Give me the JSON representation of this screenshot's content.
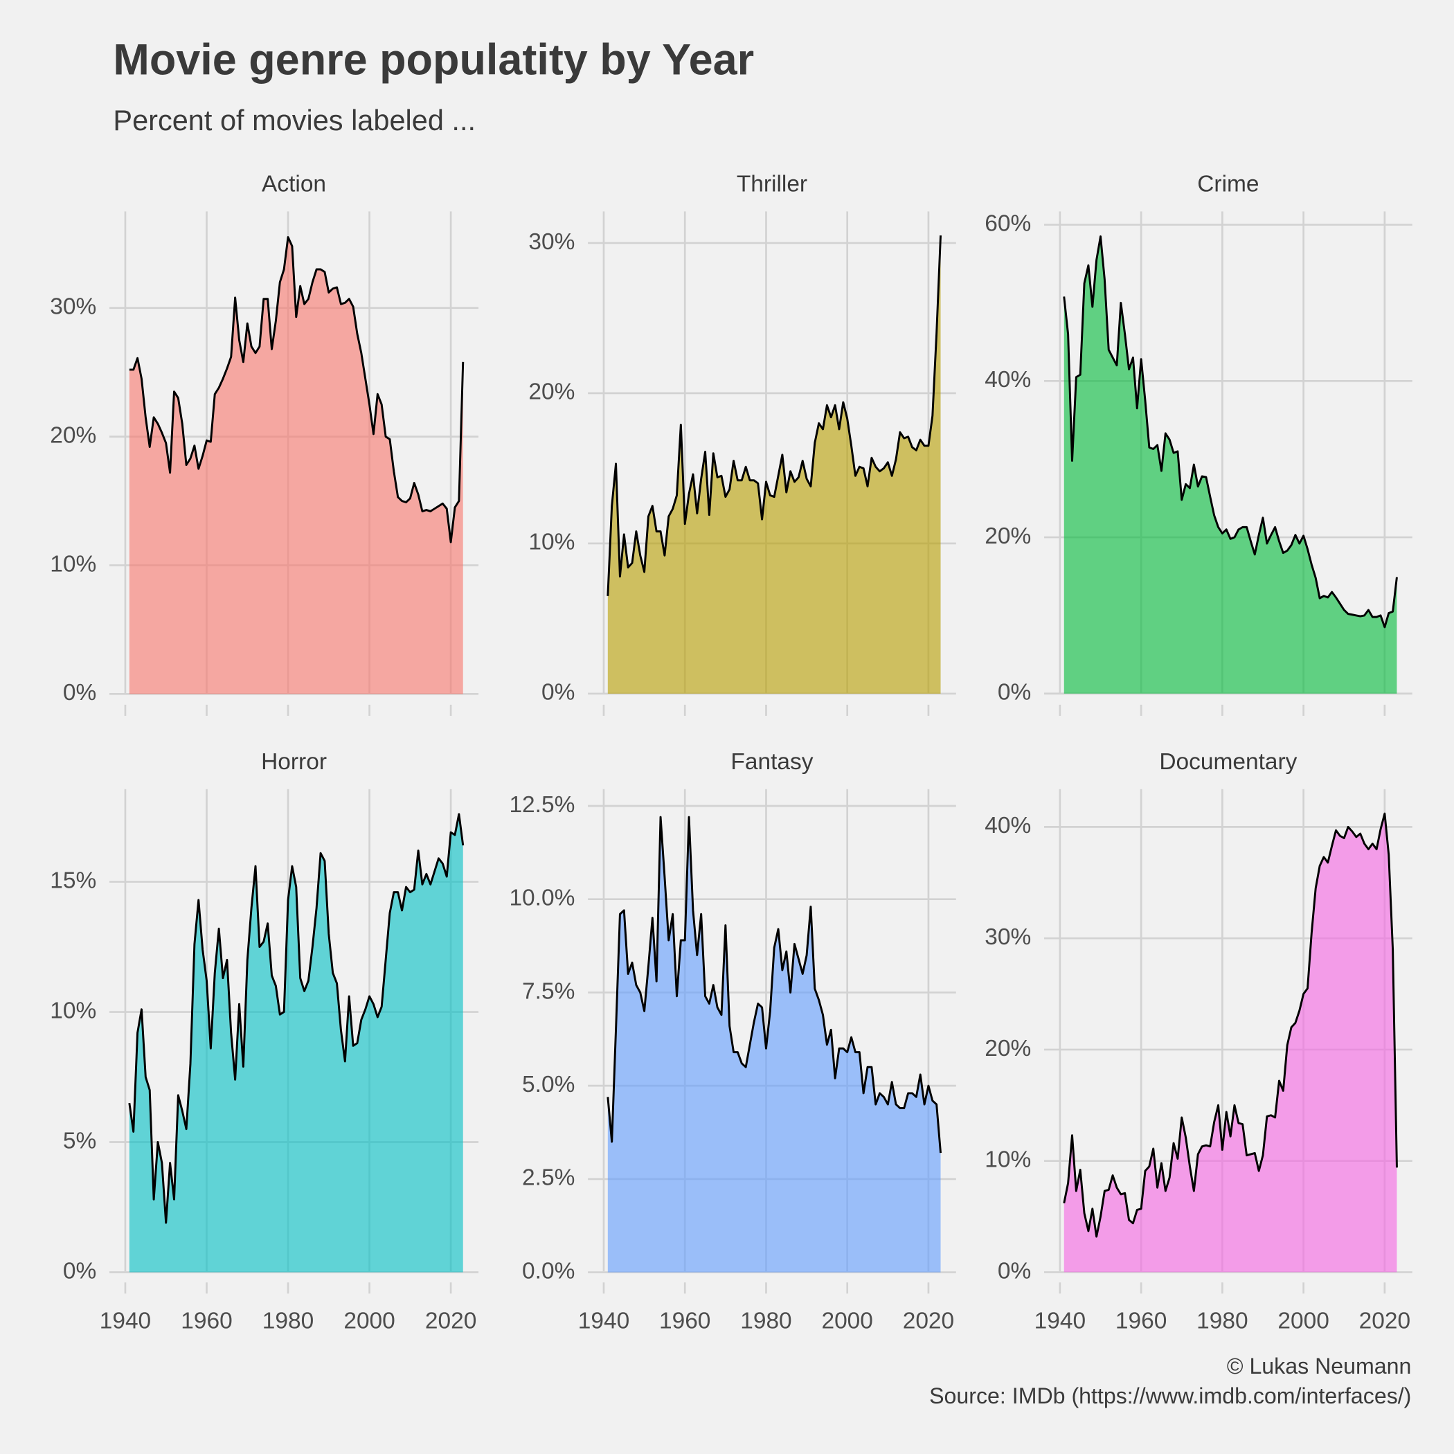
{
  "title": "Movie genre populatity by Year",
  "subtitle": "Percent of movies labeled ...",
  "caption": [
    "© Lukas Neumann",
    "Source: IMDb (https://www.imdb.com/interfaces/)"
  ],
  "chart_data": [
    {
      "type": "area",
      "title": "Action",
      "color": "#F8766D",
      "grid": true,
      "x": [
        1941,
        1942,
        1943,
        1944,
        1945,
        1946,
        1947,
        1948,
        1949,
        1950,
        1951,
        1952,
        1953,
        1954,
        1955,
        1956,
        1957,
        1958,
        1959,
        1960,
        1961,
        1962,
        1963,
        1964,
        1965,
        1966,
        1967,
        1968,
        1969,
        1970,
        1971,
        1972,
        1973,
        1974,
        1975,
        1976,
        1977,
        1978,
        1979,
        1980,
        1981,
        1982,
        1983,
        1984,
        1985,
        1986,
        1987,
        1988,
        1989,
        1990,
        1991,
        1992,
        1993,
        1994,
        1995,
        1996,
        1997,
        1998,
        1999,
        2000,
        2001,
        2002,
        2003,
        2004,
        2005,
        2006,
        2007,
        2008,
        2009,
        2010,
        2011,
        2012,
        2013,
        2014,
        2015,
        2016,
        2017,
        2018,
        2019,
        2020,
        2021,
        2022,
        2023
      ],
      "values": [
        25.2,
        25.2,
        26.1,
        24.5,
        21.5,
        19.2,
        21.5,
        21.0,
        20.3,
        19.5,
        17.2,
        23.5,
        23.0,
        21.0,
        17.8,
        18.3,
        19.3,
        17.5,
        18.5,
        19.7,
        19.6,
        23.3,
        23.8,
        24.5,
        25.3,
        26.2,
        30.8,
        27.5,
        25.8,
        28.8,
        27.0,
        26.5,
        27.0,
        30.7,
        30.7,
        26.8,
        29.0,
        32.0,
        33.0,
        35.5,
        34.8,
        29.3,
        31.7,
        30.3,
        30.7,
        32.0,
        33.0,
        33.0,
        32.8,
        31.2,
        31.5,
        31.6,
        30.3,
        30.4,
        30.7,
        30.1,
        28.0,
        26.5,
        24.5,
        22.5,
        20.2,
        23.3,
        22.5,
        20.0,
        19.8,
        17.3,
        15.3,
        15.0,
        14.9,
        15.2,
        16.4,
        15.5,
        14.2,
        14.3,
        14.2,
        14.4,
        14.6,
        14.8,
        14.4,
        11.8,
        14.5,
        15.0,
        25.8
      ],
      "xlim": [
        1936.1,
        2026.8
      ],
      "xticks": [
        1940,
        1960,
        1980,
        2000,
        2020
      ],
      "ylim": [
        -1.7,
        37.5
      ],
      "yticks": [
        {
          "value": 0,
          "label": "0%"
        },
        {
          "value": 10,
          "label": "10%"
        },
        {
          "value": 20,
          "label": "20%"
        },
        {
          "value": 30,
          "label": "30%"
        }
      ]
    },
    {
      "type": "area",
      "title": "Thriller",
      "color": "#B79F00",
      "grid": true,
      "x": [
        1941,
        1942,
        1943,
        1944,
        1945,
        1946,
        1947,
        1948,
        1949,
        1950,
        1951,
        1952,
        1953,
        1954,
        1955,
        1956,
        1957,
        1958,
        1959,
        1960,
        1961,
        1962,
        1963,
        1964,
        1965,
        1966,
        1967,
        1968,
        1969,
        1970,
        1971,
        1972,
        1973,
        1974,
        1975,
        1976,
        1977,
        1978,
        1979,
        1980,
        1981,
        1982,
        1983,
        1984,
        1985,
        1986,
        1987,
        1988,
        1989,
        1990,
        1991,
        1992,
        1993,
        1994,
        1995,
        1996,
        1997,
        1998,
        1999,
        2000,
        2001,
        2002,
        2003,
        2004,
        2005,
        2006,
        2007,
        2008,
        2009,
        2010,
        2011,
        2012,
        2013,
        2014,
        2015,
        2016,
        2017,
        2018,
        2019,
        2020,
        2021,
        2022,
        2023
      ],
      "values": [
        6.5,
        12.5,
        15.3,
        7.8,
        10.6,
        8.4,
        8.7,
        10.8,
        9.2,
        8.1,
        11.8,
        12.5,
        10.8,
        10.8,
        9.2,
        11.8,
        12.3,
        13.2,
        17.9,
        11.3,
        13.3,
        14.6,
        12.0,
        14.3,
        16.1,
        11.9,
        16.0,
        14.4,
        14.5,
        13.1,
        13.6,
        15.5,
        14.2,
        14.2,
        15.1,
        14.2,
        14.2,
        14.0,
        11.6,
        14.1,
        13.2,
        13.1,
        14.5,
        15.9,
        13.4,
        14.8,
        14.1,
        14.4,
        15.5,
        14.3,
        13.8,
        16.7,
        18.0,
        17.6,
        19.2,
        18.4,
        19.2,
        17.6,
        19.4,
        18.3,
        16.5,
        14.5,
        15.1,
        15.0,
        13.8,
        15.7,
        15.1,
        14.8,
        15.0,
        15.4,
        14.5,
        15.6,
        17.4,
        17.0,
        17.1,
        16.4,
        16.2,
        16.9,
        16.5,
        16.5,
        18.5,
        24.0,
        30.5
      ],
      "xlim": [
        1936.1,
        2026.8
      ],
      "xticks": [
        1940,
        1960,
        1980,
        2000,
        2020
      ],
      "ylim": [
        -1.48,
        32.1
      ],
      "yticks": [
        {
          "value": 0,
          "label": "0%"
        },
        {
          "value": 10,
          "label": "10%"
        },
        {
          "value": 20,
          "label": "20%"
        },
        {
          "value": 30,
          "label": "30%"
        }
      ]
    },
    {
      "type": "area",
      "title": "Crime",
      "color": "#00BA38",
      "grid": true,
      "x": [
        1941,
        1942,
        1943,
        1944,
        1945,
        1946,
        1947,
        1948,
        1949,
        1950,
        1951,
        1952,
        1953,
        1954,
        1955,
        1956,
        1957,
        1958,
        1959,
        1960,
        1961,
        1962,
        1963,
        1964,
        1965,
        1966,
        1967,
        1968,
        1969,
        1970,
        1971,
        1972,
        1973,
        1974,
        1975,
        1976,
        1977,
        1978,
        1979,
        1980,
        1981,
        1982,
        1983,
        1984,
        1985,
        1986,
        1987,
        1988,
        1989,
        1990,
        1991,
        1992,
        1993,
        1994,
        1995,
        1996,
        1997,
        1998,
        1999,
        2000,
        2001,
        2002,
        2003,
        2004,
        2005,
        2006,
        2007,
        2008,
        2009,
        2010,
        2011,
        2012,
        2013,
        2014,
        2015,
        2016,
        2017,
        2018,
        2019,
        2020,
        2021,
        2022,
        2023
      ],
      "values": [
        50.8,
        46.0,
        29.8,
        40.5,
        40.8,
        52.5,
        54.8,
        49.5,
        55.5,
        58.5,
        53.0,
        44.0,
        43.0,
        42.0,
        50.0,
        46.0,
        41.5,
        43.0,
        36.5,
        42.8,
        37.5,
        31.5,
        31.3,
        31.8,
        28.5,
        33.3,
        32.5,
        30.8,
        31.0,
        24.8,
        26.8,
        26.3,
        29.3,
        26.5,
        27.8,
        27.7,
        25.2,
        22.8,
        21.3,
        20.5,
        21.0,
        19.8,
        20.0,
        21.0,
        21.3,
        21.3,
        19.5,
        17.8,
        20.3,
        22.5,
        19.2,
        20.3,
        21.3,
        19.5,
        18.0,
        18.3,
        19.0,
        20.3,
        19.2,
        20.2,
        18.5,
        16.5,
        14.8,
        12.2,
        12.5,
        12.3,
        13.0,
        12.3,
        11.5,
        10.7,
        10.2,
        10.1,
        10.0,
        9.9,
        10.0,
        10.7,
        9.8,
        9.8,
        10.0,
        8.5,
        10.3,
        10.5,
        14.9
      ],
      "xlim": [
        1936.1,
        2026.8
      ],
      "xticks": [
        1940,
        1960,
        1980,
        2000,
        2020
      ],
      "ylim": [
        -2.85,
        61.7
      ],
      "yticks": [
        {
          "value": 0,
          "label": "0%"
        },
        {
          "value": 20,
          "label": "20%"
        },
        {
          "value": 40,
          "label": "40%"
        },
        {
          "value": 60,
          "label": "60%"
        }
      ]
    },
    {
      "type": "area",
      "title": "Horror",
      "color": "#00BFC4",
      "grid": true,
      "x": [
        1941,
        1942,
        1943,
        1944,
        1945,
        1946,
        1947,
        1948,
        1949,
        1950,
        1951,
        1952,
        1953,
        1954,
        1955,
        1956,
        1957,
        1958,
        1959,
        1960,
        1961,
        1962,
        1963,
        1964,
        1965,
        1966,
        1967,
        1968,
        1969,
        1970,
        1971,
        1972,
        1973,
        1974,
        1975,
        1976,
        1977,
        1978,
        1979,
        1980,
        1981,
        1982,
        1983,
        1984,
        1985,
        1986,
        1987,
        1988,
        1989,
        1990,
        1991,
        1992,
        1993,
        1994,
        1995,
        1996,
        1997,
        1998,
        1999,
        2000,
        2001,
        2002,
        2003,
        2004,
        2005,
        2006,
        2007,
        2008,
        2009,
        2010,
        2011,
        2012,
        2013,
        2014,
        2015,
        2016,
        2017,
        2018,
        2019,
        2020,
        2021,
        2022,
        2023
      ],
      "values": [
        6.5,
        5.4,
        9.2,
        10.1,
        7.5,
        7.0,
        2.8,
        5.0,
        4.2,
        1.9,
        4.2,
        2.8,
        6.8,
        6.2,
        5.5,
        8.0,
        12.6,
        14.3,
        12.4,
        11.2,
        8.6,
        11.5,
        13.2,
        11.3,
        12.0,
        9.2,
        7.4,
        10.3,
        7.9,
        12.0,
        14.0,
        15.6,
        12.5,
        12.7,
        13.4,
        11.4,
        11.0,
        9.9,
        10.0,
        14.3,
        15.6,
        14.8,
        11.3,
        10.8,
        11.2,
        12.5,
        14.0,
        16.1,
        15.8,
        13.0,
        11.5,
        11.1,
        9.3,
        8.1,
        10.6,
        8.7,
        8.8,
        9.7,
        10.1,
        10.6,
        10.3,
        9.8,
        10.2,
        12.0,
        13.8,
        14.6,
        14.6,
        13.9,
        14.8,
        14.6,
        14.7,
        16.2,
        14.9,
        15.3,
        14.9,
        15.4,
        15.9,
        15.7,
        15.2,
        16.9,
        16.8,
        17.6,
        16.4
      ],
      "xlim": [
        1936.1,
        2026.8
      ],
      "xticks": [
        1940,
        1960,
        1980,
        2000,
        2020
      ],
      "ylim": [
        -0.82,
        18.56
      ],
      "yticks": [
        {
          "value": 0,
          "label": "0%"
        },
        {
          "value": 5,
          "label": "5%"
        },
        {
          "value": 10,
          "label": "10%"
        },
        {
          "value": 15,
          "label": "15%"
        }
      ]
    },
    {
      "type": "area",
      "title": "Fantasy",
      "color": "#619CFF",
      "grid": true,
      "x": [
        1941,
        1942,
        1943,
        1944,
        1945,
        1946,
        1947,
        1948,
        1949,
        1950,
        1951,
        1952,
        1953,
        1954,
        1955,
        1956,
        1957,
        1958,
        1959,
        1960,
        1961,
        1962,
        1963,
        1964,
        1965,
        1966,
        1967,
        1968,
        1969,
        1970,
        1971,
        1972,
        1973,
        1974,
        1975,
        1976,
        1977,
        1978,
        1979,
        1980,
        1981,
        1982,
        1983,
        1984,
        1985,
        1986,
        1987,
        1988,
        1989,
        1990,
        1991,
        1992,
        1993,
        1994,
        1995,
        1996,
        1997,
        1998,
        1999,
        2000,
        2001,
        2002,
        2003,
        2004,
        2005,
        2006,
        2007,
        2008,
        2009,
        2010,
        2011,
        2012,
        2013,
        2014,
        2015,
        2016,
        2017,
        2018,
        2019,
        2020,
        2021,
        2022,
        2023
      ],
      "values": [
        4.7,
        3.5,
        6.5,
        9.6,
        9.7,
        8.0,
        8.3,
        7.7,
        7.5,
        7.0,
        8.2,
        9.5,
        7.8,
        12.2,
        10.6,
        8.9,
        9.6,
        7.4,
        8.9,
        8.9,
        12.2,
        9.7,
        8.5,
        9.6,
        7.4,
        7.2,
        7.7,
        7.1,
        6.9,
        9.3,
        6.6,
        5.9,
        5.9,
        5.6,
        5.5,
        6.1,
        6.7,
        7.2,
        7.1,
        6.0,
        7.0,
        8.7,
        9.2,
        8.1,
        8.6,
        7.5,
        8.8,
        8.4,
        8.0,
        8.5,
        9.8,
        7.6,
        7.3,
        6.9,
        6.1,
        6.5,
        5.2,
        6.0,
        6.0,
        5.9,
        6.3,
        5.9,
        5.9,
        4.8,
        5.5,
        5.5,
        4.5,
        4.8,
        4.7,
        4.5,
        5.1,
        4.5,
        4.4,
        4.4,
        4.8,
        4.8,
        4.7,
        5.3,
        4.5,
        5.0,
        4.6,
        4.5,
        3.2
      ],
      "xlim": [
        1936.1,
        2026.8
      ],
      "xticks": [
        1940,
        1960,
        1980,
        2000,
        2020
      ],
      "ylim": [
        -0.57,
        12.95
      ],
      "yticks": [
        {
          "value": 0,
          "label": "0.0%"
        },
        {
          "value": 2.5,
          "label": "2.5%"
        },
        {
          "value": 5,
          "label": "5.0%"
        },
        {
          "value": 7.5,
          "label": "7.5%"
        },
        {
          "value": 10,
          "label": "10.0%"
        },
        {
          "value": 12.5,
          "label": "12.5%"
        }
      ]
    },
    {
      "type": "area",
      "title": "Documentary",
      "color": "#F564E3",
      "grid": true,
      "x": [
        1941,
        1942,
        1943,
        1944,
        1945,
        1946,
        1947,
        1948,
        1949,
        1950,
        1951,
        1952,
        1953,
        1954,
        1955,
        1956,
        1957,
        1958,
        1959,
        1960,
        1961,
        1962,
        1963,
        1964,
        1965,
        1966,
        1967,
        1968,
        1969,
        1970,
        1971,
        1972,
        1973,
        1974,
        1975,
        1976,
        1977,
        1978,
        1979,
        1980,
        1981,
        1982,
        1983,
        1984,
        1985,
        1986,
        1987,
        1988,
        1989,
        1990,
        1991,
        1992,
        1993,
        1994,
        1995,
        1996,
        1997,
        1998,
        1999,
        2000,
        2001,
        2002,
        2003,
        2004,
        2005,
        2006,
        2007,
        2008,
        2009,
        2010,
        2011,
        2012,
        2013,
        2014,
        2015,
        2016,
        2017,
        2018,
        2019,
        2020,
        2021,
        2022,
        2023
      ],
      "values": [
        6.2,
        8.0,
        12.3,
        7.3,
        9.2,
        5.3,
        3.7,
        5.7,
        3.2,
        5.0,
        7.3,
        7.4,
        8.7,
        7.6,
        7.0,
        7.1,
        4.7,
        4.4,
        5.6,
        5.7,
        9.1,
        9.5,
        11.1,
        7.6,
        9.8,
        7.3,
        8.5,
        11.6,
        10.2,
        13.9,
        12.1,
        9.5,
        7.3,
        10.6,
        11.3,
        11.4,
        11.3,
        13.5,
        15.0,
        11.0,
        14.4,
        12.2,
        15.0,
        13.4,
        13.3,
        10.5,
        10.6,
        10.7,
        9.1,
        10.5,
        14.0,
        14.1,
        13.9,
        17.2,
        16.3,
        20.4,
        22.0,
        22.4,
        23.5,
        25.0,
        25.5,
        30.5,
        34.5,
        36.5,
        37.3,
        36.8,
        38.3,
        39.7,
        39.2,
        39.0,
        40.0,
        39.6,
        39.1,
        39.4,
        38.5,
        38.0,
        38.5,
        38.0,
        39.8,
        41.2,
        37.5,
        29.0,
        9.4
      ],
      "xlim": [
        1936.1,
        2026.8
      ],
      "xticks": [
        1940,
        1960,
        1980,
        2000,
        2020
      ],
      "ylim": [
        -1.92,
        43.4
      ],
      "yticks": [
        {
          "value": 0,
          "label": "0%"
        },
        {
          "value": 10,
          "label": "10%"
        },
        {
          "value": 20,
          "label": "20%"
        },
        {
          "value": 30,
          "label": "30%"
        },
        {
          "value": 40,
          "label": "40%"
        }
      ]
    }
  ]
}
